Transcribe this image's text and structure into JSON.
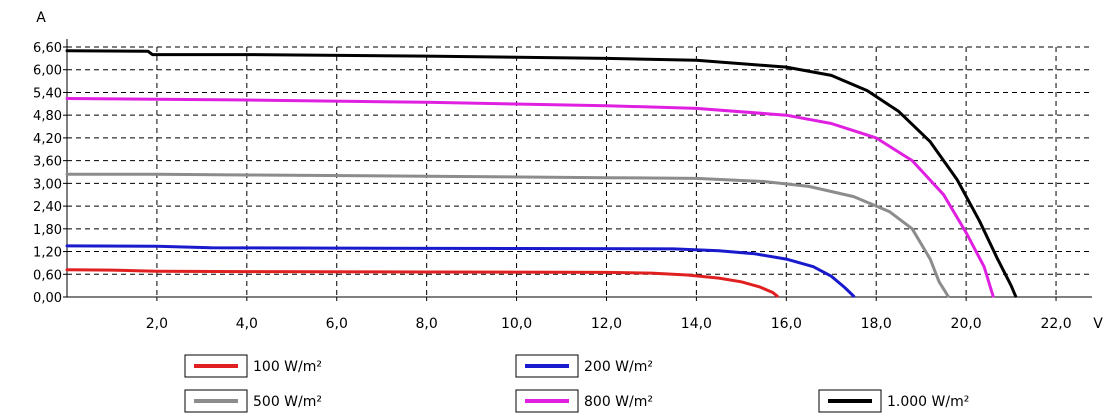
{
  "chart_data": {
    "type": "line",
    "xlabel": "V",
    "ylabel": "A",
    "xlim": [
      0,
      22.8
    ],
    "ylim": [
      0,
      6.6
    ],
    "x_ticks": [
      2,
      4,
      6,
      8,
      10,
      12,
      14,
      16,
      18,
      20,
      22
    ],
    "x_tick_labels": [
      "2,0",
      "4,0",
      "6,0",
      "8,0",
      "10,0",
      "12,0",
      "14,0",
      "16,0",
      "18,0",
      "20,0",
      "22,0"
    ],
    "y_ticks": [
      0,
      0.6,
      1.2,
      1.8,
      2.4,
      3.0,
      3.6,
      4.2,
      4.8,
      5.4,
      6.0,
      6.6
    ],
    "y_tick_labels": [
      "0,00",
      "0,60",
      "1,20",
      "1,80",
      "2,40",
      "3,00",
      "3,60",
      "4,20",
      "4,80",
      "5,40",
      "6,00",
      "6,60"
    ],
    "grid": true,
    "legend_position": "bottom",
    "series": [
      {
        "name": "100 W/m²",
        "color": "#e02020",
        "points": [
          [
            0,
            0.72
          ],
          [
            1.0,
            0.71
          ],
          [
            2.0,
            0.68
          ],
          [
            4.0,
            0.67
          ],
          [
            8.0,
            0.66
          ],
          [
            12.0,
            0.65
          ],
          [
            13.0,
            0.63
          ],
          [
            13.8,
            0.58
          ],
          [
            14.5,
            0.5
          ],
          [
            15.0,
            0.4
          ],
          [
            15.4,
            0.27
          ],
          [
            15.7,
            0.12
          ],
          [
            15.8,
            0.02
          ]
        ]
      },
      {
        "name": "200 W/m²",
        "color": "#1a1acd",
        "points": [
          [
            0,
            1.35
          ],
          [
            2.0,
            1.34
          ],
          [
            3.2,
            1.3
          ],
          [
            6.0,
            1.29
          ],
          [
            10.0,
            1.28
          ],
          [
            13.5,
            1.27
          ],
          [
            14.5,
            1.22
          ],
          [
            15.3,
            1.14
          ],
          [
            16.0,
            1.0
          ],
          [
            16.6,
            0.8
          ],
          [
            17.0,
            0.55
          ],
          [
            17.3,
            0.25
          ],
          [
            17.5,
            0.02
          ]
        ]
      },
      {
        "name": "500 W/m²",
        "color": "#8c8c8c",
        "points": [
          [
            0,
            3.24
          ],
          [
            2.0,
            3.24
          ],
          [
            4.0,
            3.22
          ],
          [
            8.0,
            3.19
          ],
          [
            12.0,
            3.15
          ],
          [
            14.0,
            3.13
          ],
          [
            15.5,
            3.05
          ],
          [
            16.5,
            2.92
          ],
          [
            17.5,
            2.65
          ],
          [
            18.3,
            2.25
          ],
          [
            18.8,
            1.8
          ],
          [
            19.2,
            1.0
          ],
          [
            19.4,
            0.4
          ],
          [
            19.6,
            0.02
          ]
        ]
      },
      {
        "name": "800 W/m²",
        "color": "#e020e0",
        "points": [
          [
            0,
            5.24
          ],
          [
            2.0,
            5.22
          ],
          [
            4.0,
            5.2
          ],
          [
            8.0,
            5.14
          ],
          [
            12.0,
            5.05
          ],
          [
            14.0,
            4.98
          ],
          [
            16.0,
            4.8
          ],
          [
            17.0,
            4.58
          ],
          [
            18.0,
            4.2
          ],
          [
            18.8,
            3.6
          ],
          [
            19.5,
            2.7
          ],
          [
            20.0,
            1.7
          ],
          [
            20.4,
            0.8
          ],
          [
            20.6,
            0.02
          ]
        ]
      },
      {
        "name": "1.000 W/m²",
        "color": "#000000",
        "points": [
          [
            0,
            6.5
          ],
          [
            1.8,
            6.49
          ],
          [
            1.9,
            6.4
          ],
          [
            4.0,
            6.4
          ],
          [
            8.0,
            6.36
          ],
          [
            12.0,
            6.3
          ],
          [
            14.0,
            6.25
          ],
          [
            16.0,
            6.07
          ],
          [
            17.0,
            5.85
          ],
          [
            17.8,
            5.45
          ],
          [
            18.5,
            4.9
          ],
          [
            19.2,
            4.1
          ],
          [
            19.8,
            3.1
          ],
          [
            20.3,
            2.0
          ],
          [
            20.7,
            1.0
          ],
          [
            21.0,
            0.3
          ],
          [
            21.1,
            0.02
          ]
        ]
      }
    ]
  }
}
